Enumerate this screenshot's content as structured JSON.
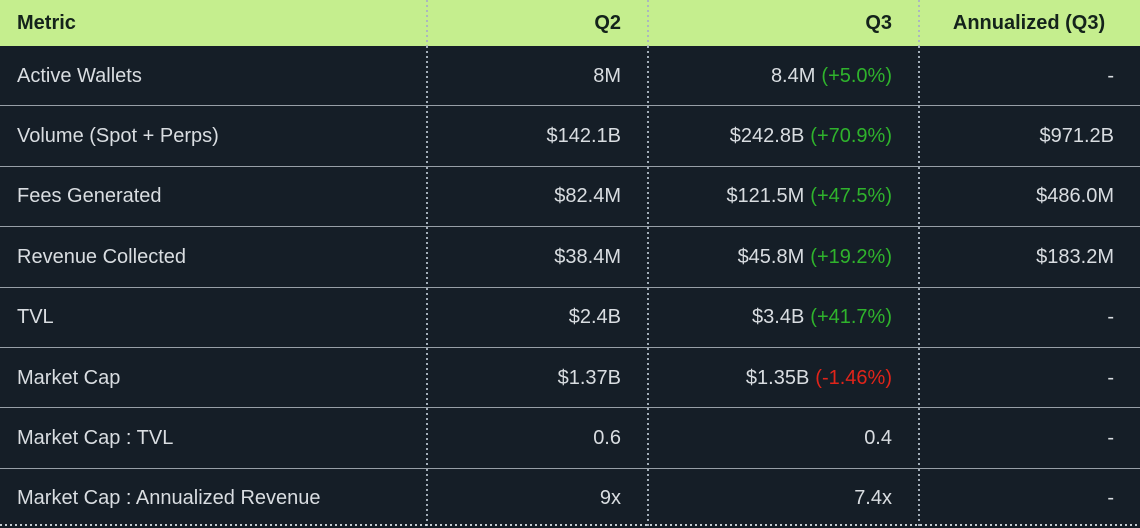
{
  "colors": {
    "bg": "#151e27",
    "header_bg": "#c5ee8e",
    "header_text": "#14231b",
    "text": "#d9dde1",
    "positive": "#2fb32c",
    "negative": "#e0241a"
  },
  "table": {
    "columns": [
      {
        "label": "Metric"
      },
      {
        "label": "Q2"
      },
      {
        "label": "Q3"
      },
      {
        "label": "Annualized (Q3)"
      }
    ],
    "rows": [
      {
        "metric": "Active Wallets",
        "q2": "8M",
        "q3": "8.4M",
        "q3_change": "(+5.0%)",
        "annualized": "-"
      },
      {
        "metric": "Volume (Spot + Perps)",
        "q2": "$142.1B",
        "q3": "$242.8B",
        "q3_change": "(+70.9%)",
        "annualized": "$971.2B"
      },
      {
        "metric": "Fees Generated",
        "q2": "$82.4M",
        "q3": "$121.5M",
        "q3_change": "(+47.5%)",
        "annualized": "$486.0M"
      },
      {
        "metric": "Revenue Collected",
        "q2": "$38.4M",
        "q3": "$45.8M",
        "q3_change": "(+19.2%)",
        "annualized": "$183.2M"
      },
      {
        "metric": "TVL",
        "q2": "$2.4B",
        "q3": "$3.4B",
        "q3_change": "(+41.7%)",
        "annualized": "-"
      },
      {
        "metric": "Market Cap",
        "q2": "$1.37B",
        "q3": "$1.35B",
        "q3_change": "(-1.46%)",
        "annualized": "-"
      },
      {
        "metric": "Market Cap : TVL",
        "q2": "0.6",
        "q3": "0.4",
        "q3_change": "",
        "annualized": "-"
      },
      {
        "metric": "Market Cap : Annualized Revenue",
        "q2": "9x",
        "q3": "7.4x",
        "q3_change": "",
        "annualized": "-"
      }
    ]
  },
  "chart_data": {
    "type": "table",
    "title": "",
    "columns": [
      "Metric",
      "Q2",
      "Q3",
      "Annualized (Q3)"
    ],
    "rows": [
      [
        "Active Wallets",
        "8M",
        "8.4M (+5.0%)",
        "-"
      ],
      [
        "Volume (Spot + Perps)",
        "$142.1B",
        "$242.8B (+70.9%)",
        "$971.2B"
      ],
      [
        "Fees Generated",
        "$82.4M",
        "$121.5M (+47.5%)",
        "$486.0M"
      ],
      [
        "Revenue Collected",
        "$38.4M",
        "$45.8M (+19.2%)",
        "$183.2M"
      ],
      [
        "TVL",
        "$2.4B",
        "$3.4B (+41.7%)",
        "-"
      ],
      [
        "Market Cap",
        "$1.37B",
        "$1.35B (-1.46%)",
        "-"
      ],
      [
        "Market Cap : TVL",
        "0.6",
        "0.4",
        "-"
      ],
      [
        "Market Cap : Annualized Revenue",
        "9x",
        "7.4x",
        "-"
      ]
    ],
    "notes": {
      "positive_changes_color": "#2fb32c",
      "negative_changes_color": "#e0241a",
      "header_background": "#c5ee8e"
    }
  }
}
